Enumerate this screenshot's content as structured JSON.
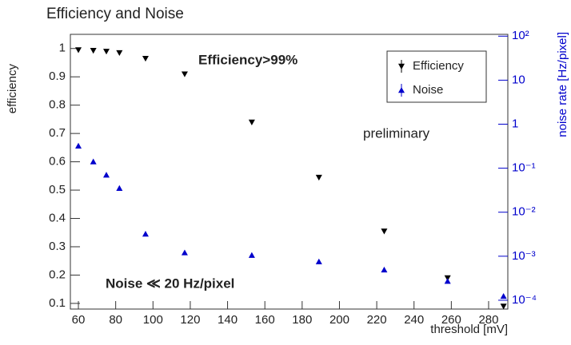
{
  "chart_data": {
    "type": "scatter",
    "title": "Efficiency and Noise",
    "xlabel": "threshold [mV]",
    "ylabel": "efficiency",
    "y2label": "noise rate [Hz/pixel]",
    "annotations": [
      "Efficiency>99%",
      "preliminary",
      "Noise ≪ 20 Hz/pixel"
    ],
    "x": [
      60,
      68,
      75,
      82,
      96,
      117,
      153,
      189,
      224,
      258,
      288
    ],
    "series": [
      {
        "name": "Efficiency",
        "color": "#000000",
        "marker": "triangle-down",
        "values": [
          0.995,
          0.993,
          0.99,
          0.985,
          0.965,
          0.91,
          0.74,
          0.545,
          0.355,
          0.19,
          0.09
        ]
      },
      {
        "name": "Noise",
        "color": "#0000cc",
        "marker": "triangle-up",
        "axis": "y2",
        "values": [
          0.32,
          0.14,
          0.07,
          0.035,
          0.0032,
          0.0012,
          0.00105,
          0.00075,
          0.00049,
          0.00027,
          0.000123
        ]
      }
    ],
    "xlim": [
      55.7,
      290.3
    ],
    "xticks": [
      60,
      80,
      100,
      120,
      140,
      160,
      180,
      200,
      220,
      240,
      260,
      280
    ],
    "ylim": [
      0.08,
      1.05
    ],
    "yticks": [
      0.1,
      0.2,
      0.3,
      0.4,
      0.5,
      0.6,
      0.7,
      0.8,
      0.9,
      1
    ],
    "y2lim": [
      6.3e-05,
      110
    ],
    "y2scale": "log",
    "y2ticks": [
      {
        "value": 100,
        "label": "10²"
      },
      {
        "value": 10,
        "label": "10"
      },
      {
        "value": 1,
        "label": "1"
      },
      {
        "value": 0.1,
        "label": "10⁻¹"
      },
      {
        "value": 0.01,
        "label": "10⁻²"
      },
      {
        "value": 0.001,
        "label": "10⁻³"
      },
      {
        "value": 0.0001,
        "label": "10⁻⁴"
      }
    ],
    "legend": "upper right"
  }
}
